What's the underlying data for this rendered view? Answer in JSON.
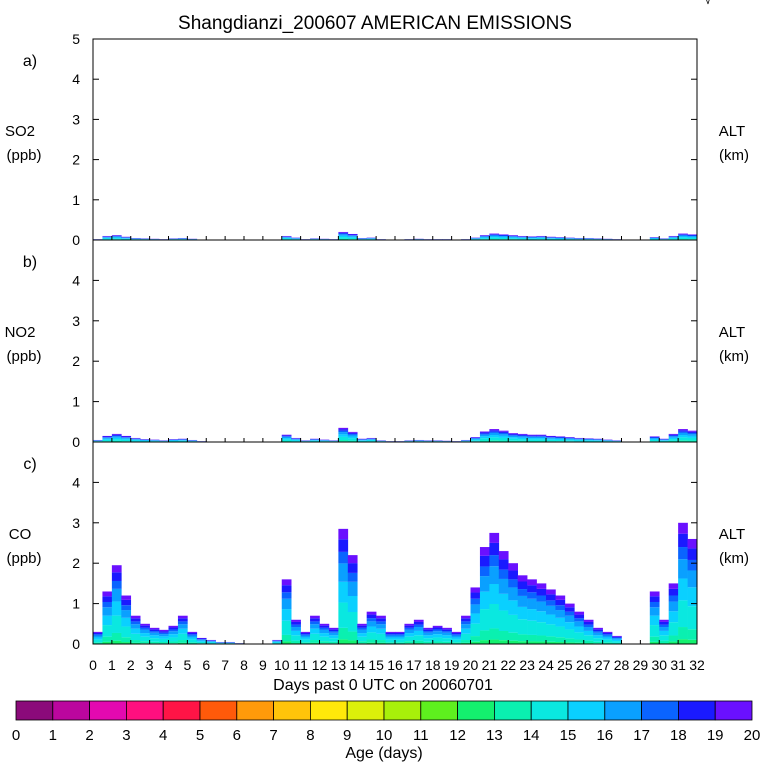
{
  "title": "Shangdianzi_200607 AMERICAN EMISSIONS",
  "corner_mark": "√",
  "xlabel": "Days past 0 UTC on 20060701",
  "x_ticks": [
    "0",
    "1",
    "2",
    "3",
    "4",
    "5",
    "6",
    "7",
    "8",
    "9",
    "10",
    "11",
    "12",
    "13",
    "14",
    "15",
    "16",
    "17",
    "18",
    "19",
    "20",
    "21",
    "22",
    "23",
    "24",
    "25",
    "26",
    "27",
    "28",
    "29",
    "30",
    "31",
    "32"
  ],
  "colorbar": {
    "label": "Age (days)",
    "ticks": [
      "0",
      "1",
      "2",
      "3",
      "4",
      "5",
      "6",
      "7",
      "8",
      "9",
      "10",
      "11",
      "12",
      "13",
      "14",
      "15",
      "16",
      "17",
      "18",
      "19",
      "20"
    ],
    "colors": [
      "#8b0a7a",
      "#bb069e",
      "#e309b0",
      "#ff0f7f",
      "#ff1446",
      "#ff5a0a",
      "#ff9a0a",
      "#ffc40a",
      "#ffe80a",
      "#dcf00a",
      "#a8f00a",
      "#5ef01e",
      "#14f06e",
      "#0af0b0",
      "#0ae8e0",
      "#0ad0ff",
      "#0aa0ff",
      "#0a64ff",
      "#1a1aff",
      "#6a10ff"
    ]
  },
  "chart_data": [
    {
      "type": "area",
      "panel_label": "a)",
      "ylabel_left": [
        "SO2",
        "(ppb)"
      ],
      "ylabel_right": [
        "ALT",
        "(km)"
      ],
      "ylim": [
        0,
        5
      ],
      "y_ticks": [
        "0",
        "1",
        "2",
        "3",
        "4",
        "5"
      ],
      "xlim": [
        0,
        32
      ],
      "x": [
        0,
        0.5,
        1,
        1.5,
        2,
        2.5,
        3,
        3.5,
        4,
        4.5,
        5,
        5.5,
        6,
        6.5,
        7,
        7.5,
        8,
        8.5,
        9,
        9.5,
        10,
        10.5,
        11,
        11.5,
        12,
        12.5,
        13,
        13.5,
        14,
        14.5,
        15,
        15.5,
        16,
        16.5,
        17,
        17.5,
        18,
        18.5,
        19,
        19.5,
        20,
        20.5,
        21,
        21.5,
        22,
        22.5,
        23,
        23.5,
        24,
        24.5,
        25,
        25.5,
        26,
        26.5,
        27,
        27.5,
        28,
        28.5,
        29,
        29.5,
        30,
        30.5,
        31,
        31.5
      ],
      "values": [
        0.02,
        0.1,
        0.12,
        0.08,
        0.05,
        0.04,
        0.03,
        0.02,
        0.04,
        0.05,
        0.03,
        0.01,
        0,
        0,
        0,
        0,
        0,
        0,
        0,
        0,
        0.1,
        0.06,
        0.02,
        0.04,
        0.03,
        0.02,
        0.2,
        0.15,
        0.05,
        0.06,
        0.02,
        0.01,
        0,
        0.02,
        0.03,
        0.02,
        0.02,
        0.02,
        0,
        0.02,
        0.06,
        0.12,
        0.16,
        0.14,
        0.12,
        0.1,
        0.09,
        0.1,
        0.08,
        0.07,
        0.06,
        0.05,
        0.05,
        0.04,
        0.03,
        0.02,
        0,
        0,
        0,
        0.07,
        0.04,
        0.1,
        0.16,
        0.14
      ]
    },
    {
      "type": "area",
      "panel_label": "b)",
      "ylabel_left": [
        "NO2",
        "(ppb)"
      ],
      "ylabel_right": [
        "ALT",
        "(km)"
      ],
      "ylim": [
        0,
        5
      ],
      "y_ticks": [
        "0",
        "1",
        "2",
        "3",
        "4"
      ],
      "xlim": [
        0,
        32
      ],
      "x": [
        0,
        0.5,
        1,
        1.5,
        2,
        2.5,
        3,
        3.5,
        4,
        4.5,
        5,
        5.5,
        6,
        6.5,
        7,
        7.5,
        8,
        8.5,
        9,
        9.5,
        10,
        10.5,
        11,
        11.5,
        12,
        12.5,
        13,
        13.5,
        14,
        14.5,
        15,
        15.5,
        16,
        16.5,
        17,
        17.5,
        18,
        18.5,
        19,
        19.5,
        20,
        20.5,
        21,
        21.5,
        22,
        22.5,
        23,
        23.5,
        24,
        24.5,
        25,
        25.5,
        26,
        26.5,
        27,
        27.5,
        28,
        28.5,
        29,
        29.5,
        30,
        30.5,
        31,
        31.5
      ],
      "values": [
        0.05,
        0.15,
        0.2,
        0.15,
        0.1,
        0.07,
        0.06,
        0.04,
        0.07,
        0.08,
        0.05,
        0.02,
        0,
        0,
        0,
        0,
        0,
        0,
        0,
        0,
        0.18,
        0.1,
        0.04,
        0.08,
        0.06,
        0.04,
        0.35,
        0.25,
        0.08,
        0.1,
        0.04,
        0.02,
        0.02,
        0.04,
        0.05,
        0.04,
        0.04,
        0.03,
        0.02,
        0.05,
        0.12,
        0.26,
        0.32,
        0.28,
        0.22,
        0.2,
        0.18,
        0.18,
        0.15,
        0.14,
        0.12,
        0.1,
        0.09,
        0.08,
        0.06,
        0.04,
        0,
        0,
        0,
        0.14,
        0.08,
        0.2,
        0.32,
        0.28
      ]
    },
    {
      "type": "area",
      "panel_label": "c)",
      "ylabel_left": [
        "CO",
        "(ppb)"
      ],
      "ylabel_right": [
        "ALT",
        "(km)"
      ],
      "ylim": [
        0,
        5
      ],
      "y_ticks": [
        "0",
        "1",
        "2",
        "3",
        "4"
      ],
      "xlim": [
        0,
        32
      ],
      "x": [
        0,
        0.5,
        1,
        1.5,
        2,
        2.5,
        3,
        3.5,
        4,
        4.5,
        5,
        5.5,
        6,
        6.5,
        7,
        7.5,
        8,
        8.5,
        9,
        9.5,
        10,
        10.5,
        11,
        11.5,
        12,
        12.5,
        13,
        13.5,
        14,
        14.5,
        15,
        15.5,
        16,
        16.5,
        17,
        17.5,
        18,
        18.5,
        19,
        19.5,
        20,
        20.5,
        21,
        21.5,
        22,
        22.5,
        23,
        23.5,
        24,
        24.5,
        25,
        25.5,
        26,
        26.5,
        27,
        27.5,
        28,
        28.5,
        29,
        29.5,
        30,
        30.5,
        31,
        31.5
      ],
      "values": [
        0.3,
        1.3,
        1.95,
        1.2,
        0.7,
        0.5,
        0.4,
        0.35,
        0.45,
        0.7,
        0.3,
        0.15,
        0.1,
        0.05,
        0.05,
        0.02,
        0,
        0,
        0,
        0.1,
        1.6,
        0.6,
        0.3,
        0.7,
        0.5,
        0.4,
        2.85,
        2.2,
        0.5,
        0.8,
        0.7,
        0.3,
        0.3,
        0.5,
        0.6,
        0.4,
        0.45,
        0.4,
        0.3,
        0.7,
        1.4,
        2.4,
        2.75,
        2.3,
        2.0,
        1.7,
        1.6,
        1.5,
        1.35,
        1.2,
        1.0,
        0.8,
        0.6,
        0.4,
        0.3,
        0.2,
        0,
        0,
        0,
        1.3,
        0.6,
        1.5,
        3.0,
        2.6
      ]
    }
  ]
}
